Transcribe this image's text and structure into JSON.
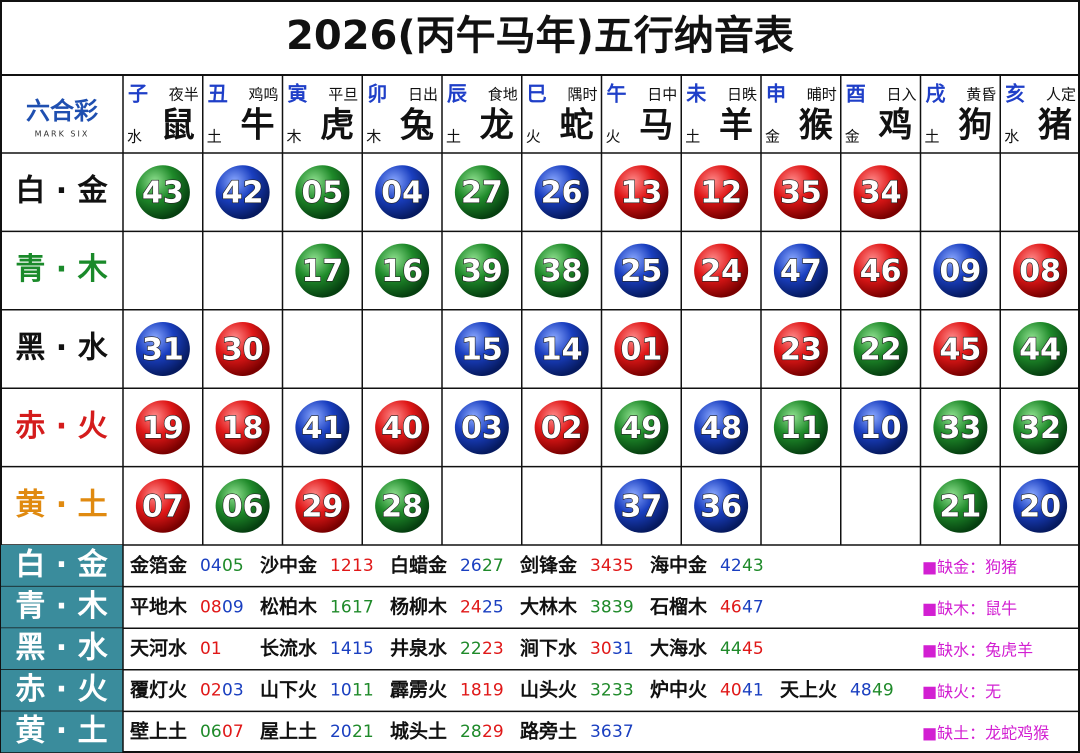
{
  "title": "2026(丙午马年)五行纳音表",
  "logo": {
    "text": "六合彩",
    "sub": "MARK SIX"
  },
  "header": [
    {
      "branch": "子",
      "time": "夜半",
      "element": "水",
      "animal": "鼠"
    },
    {
      "branch": "丑",
      "time": "鸡鸣",
      "element": "土",
      "animal": "牛"
    },
    {
      "branch": "寅",
      "time": "平旦",
      "element": "木",
      "animal": "虎"
    },
    {
      "branch": "卯",
      "time": "日出",
      "element": "木",
      "animal": "兔"
    },
    {
      "branch": "辰",
      "time": "食地",
      "element": "土",
      "animal": "龙"
    },
    {
      "branch": "巳",
      "time": "隅时",
      "element": "火",
      "animal": "蛇"
    },
    {
      "branch": "午",
      "time": "日中",
      "element": "火",
      "animal": "马"
    },
    {
      "branch": "未",
      "time": "日昳",
      "element": "土",
      "animal": "羊"
    },
    {
      "branch": "申",
      "time": "晡时",
      "element": "金",
      "animal": "猴"
    },
    {
      "branch": "酉",
      "time": "日入",
      "element": "金",
      "animal": "鸡"
    },
    {
      "branch": "戌",
      "time": "黄昏",
      "element": "土",
      "animal": "狗"
    },
    {
      "branch": "亥",
      "time": "人定",
      "element": "水",
      "animal": "猪"
    }
  ],
  "grid": [
    {
      "label": "白 · 金",
      "color": "#111111",
      "cells": [
        {
          "number": "43",
          "color": "green"
        },
        {
          "number": "42",
          "color": "blue"
        },
        {
          "number": "05",
          "color": "green"
        },
        {
          "number": "04",
          "color": "blue"
        },
        {
          "number": "27",
          "color": "green"
        },
        {
          "number": "26",
          "color": "blue"
        },
        {
          "number": "13",
          "color": "red"
        },
        {
          "number": "12",
          "color": "red"
        },
        {
          "number": "35",
          "color": "red"
        },
        {
          "number": "34",
          "color": "red"
        },
        null,
        null
      ]
    },
    {
      "label": "青 · 木",
      "color": "#1a8a2a",
      "cells": [
        null,
        null,
        {
          "number": "17",
          "color": "green"
        },
        {
          "number": "16",
          "color": "green"
        },
        {
          "number": "39",
          "color": "green"
        },
        {
          "number": "38",
          "color": "green"
        },
        {
          "number": "25",
          "color": "blue"
        },
        {
          "number": "24",
          "color": "red"
        },
        {
          "number": "47",
          "color": "blue"
        },
        {
          "number": "46",
          "color": "red"
        },
        {
          "number": "09",
          "color": "blue"
        },
        {
          "number": "08",
          "color": "red"
        }
      ]
    },
    {
      "label": "黑 · 水",
      "color": "#111111",
      "cells": [
        {
          "number": "31",
          "color": "blue"
        },
        {
          "number": "30",
          "color": "red"
        },
        null,
        null,
        {
          "number": "15",
          "color": "blue"
        },
        {
          "number": "14",
          "color": "blue"
        },
        {
          "number": "01",
          "color": "red"
        },
        null,
        {
          "number": "23",
          "color": "red"
        },
        {
          "number": "22",
          "color": "green"
        },
        {
          "number": "45",
          "color": "red"
        },
        {
          "number": "44",
          "color": "green"
        }
      ]
    },
    {
      "label": "赤 · 火",
      "color": "#d41c1c",
      "cells": [
        {
          "number": "19",
          "color": "red"
        },
        {
          "number": "18",
          "color": "red"
        },
        {
          "number": "41",
          "color": "blue"
        },
        {
          "number": "40",
          "color": "red"
        },
        {
          "number": "03",
          "color": "blue"
        },
        {
          "number": "02",
          "color": "red"
        },
        {
          "number": "49",
          "color": "green"
        },
        {
          "number": "48",
          "color": "blue"
        },
        {
          "number": "11",
          "color": "green"
        },
        {
          "number": "10",
          "color": "blue"
        },
        {
          "number": "33",
          "color": "green"
        },
        {
          "number": "32",
          "color": "green"
        }
      ]
    },
    {
      "label": "黄 · 土",
      "color": "#e08a10",
      "cells": [
        {
          "number": "07",
          "color": "red"
        },
        {
          "number": "06",
          "color": "green"
        },
        {
          "number": "29",
          "color": "red"
        },
        {
          "number": "28",
          "color": "green"
        },
        null,
        null,
        {
          "number": "37",
          "color": "blue"
        },
        {
          "number": "36",
          "color": "blue"
        },
        null,
        null,
        {
          "number": "21",
          "color": "green"
        },
        {
          "number": "20",
          "color": "blue"
        }
      ]
    }
  ],
  "nayin": [
    {
      "label": "白 · 金",
      "groups": [
        {
          "name": "金箔金",
          "numbers": [
            {
              "text": "04",
              "color": "blue"
            },
            {
              "text": "05",
              "color": "green"
            }
          ]
        },
        {
          "name": "沙中金",
          "numbers": [
            {
              "text": "12",
              "color": "red"
            },
            {
              "text": "13",
              "color": "red"
            }
          ]
        },
        {
          "name": "白蜡金",
          "numbers": [
            {
              "text": "26",
              "color": "blue"
            },
            {
              "text": "27",
              "color": "green"
            }
          ]
        },
        {
          "name": "剑锋金",
          "numbers": [
            {
              "text": "34",
              "color": "red"
            },
            {
              "text": "35",
              "color": "red"
            }
          ]
        },
        {
          "name": "海中金",
          "numbers": [
            {
              "text": "42",
              "color": "blue"
            },
            {
              "text": "43",
              "color": "green"
            }
          ]
        }
      ],
      "note": "■缺金：狗猪"
    },
    {
      "label": "青 · 木",
      "groups": [
        {
          "name": "平地木",
          "numbers": [
            {
              "text": "08",
              "color": "red"
            },
            {
              "text": "09",
              "color": "blue"
            }
          ]
        },
        {
          "name": "松柏木",
          "numbers": [
            {
              "text": "16",
              "color": "green"
            },
            {
              "text": "17",
              "color": "green"
            }
          ]
        },
        {
          "name": "杨柳木",
          "numbers": [
            {
              "text": "24",
              "color": "red"
            },
            {
              "text": "25",
              "color": "blue"
            }
          ]
        },
        {
          "name": "大林木",
          "numbers": [
            {
              "text": "38",
              "color": "green"
            },
            {
              "text": "39",
              "color": "green"
            }
          ]
        },
        {
          "name": "石榴木",
          "numbers": [
            {
              "text": "46",
              "color": "red"
            },
            {
              "text": "47",
              "color": "blue"
            }
          ]
        }
      ],
      "note": "■缺木：鼠牛"
    },
    {
      "label": "黑 · 水",
      "groups": [
        {
          "name": "天河水",
          "numbers": [
            {
              "text": "01",
              "color": "red"
            }
          ]
        },
        {
          "name": "长流水",
          "numbers": [
            {
              "text": "14",
              "color": "blue"
            },
            {
              "text": "15",
              "color": "blue"
            }
          ]
        },
        {
          "name": "井泉水",
          "numbers": [
            {
              "text": "22",
              "color": "green"
            },
            {
              "text": "23",
              "color": "red"
            }
          ]
        },
        {
          "name": "涧下水",
          "numbers": [
            {
              "text": "30",
              "color": "red"
            },
            {
              "text": "31",
              "color": "blue"
            }
          ]
        },
        {
          "name": "大海水",
          "numbers": [
            {
              "text": "44",
              "color": "green"
            },
            {
              "text": "45",
              "color": "red"
            }
          ]
        }
      ],
      "note": "■缺水：兔虎羊"
    },
    {
      "label": "赤 · 火",
      "groups": [
        {
          "name": "覆灯火",
          "numbers": [
            {
              "text": "02",
              "color": "red"
            },
            {
              "text": "03",
              "color": "blue"
            }
          ]
        },
        {
          "name": "山下火",
          "numbers": [
            {
              "text": "10",
              "color": "blue"
            },
            {
              "text": "11",
              "color": "green"
            }
          ]
        },
        {
          "name": "霹雳火",
          "numbers": [
            {
              "text": "18",
              "color": "red"
            },
            {
              "text": "19",
              "color": "red"
            }
          ]
        },
        {
          "name": "山头火",
          "numbers": [
            {
              "text": "32",
              "color": "green"
            },
            {
              "text": "33",
              "color": "green"
            }
          ]
        },
        {
          "name": "炉中火",
          "numbers": [
            {
              "text": "40",
              "color": "red"
            },
            {
              "text": "41",
              "color": "blue"
            }
          ]
        },
        {
          "name": "天上火",
          "numbers": [
            {
              "text": "48",
              "color": "blue"
            },
            {
              "text": "49",
              "color": "green"
            }
          ]
        }
      ],
      "note": "■缺火：无"
    },
    {
      "label": "黄 · 土",
      "groups": [
        {
          "name": "壁上土",
          "numbers": [
            {
              "text": "06",
              "color": "green"
            },
            {
              "text": "07",
              "color": "red"
            }
          ]
        },
        {
          "name": "屋上土",
          "numbers": [
            {
              "text": "20",
              "color": "blue"
            },
            {
              "text": "21",
              "color": "green"
            }
          ]
        },
        {
          "name": "城头土",
          "numbers": [
            {
              "text": "28",
              "color": "green"
            },
            {
              "text": "29",
              "color": "red"
            }
          ]
        },
        {
          "name": "路旁土",
          "numbers": [
            {
              "text": "36",
              "color": "blue"
            },
            {
              "text": "37",
              "color": "blue"
            }
          ]
        }
      ],
      "note": "■缺土：龙蛇鸡猴"
    }
  ]
}
